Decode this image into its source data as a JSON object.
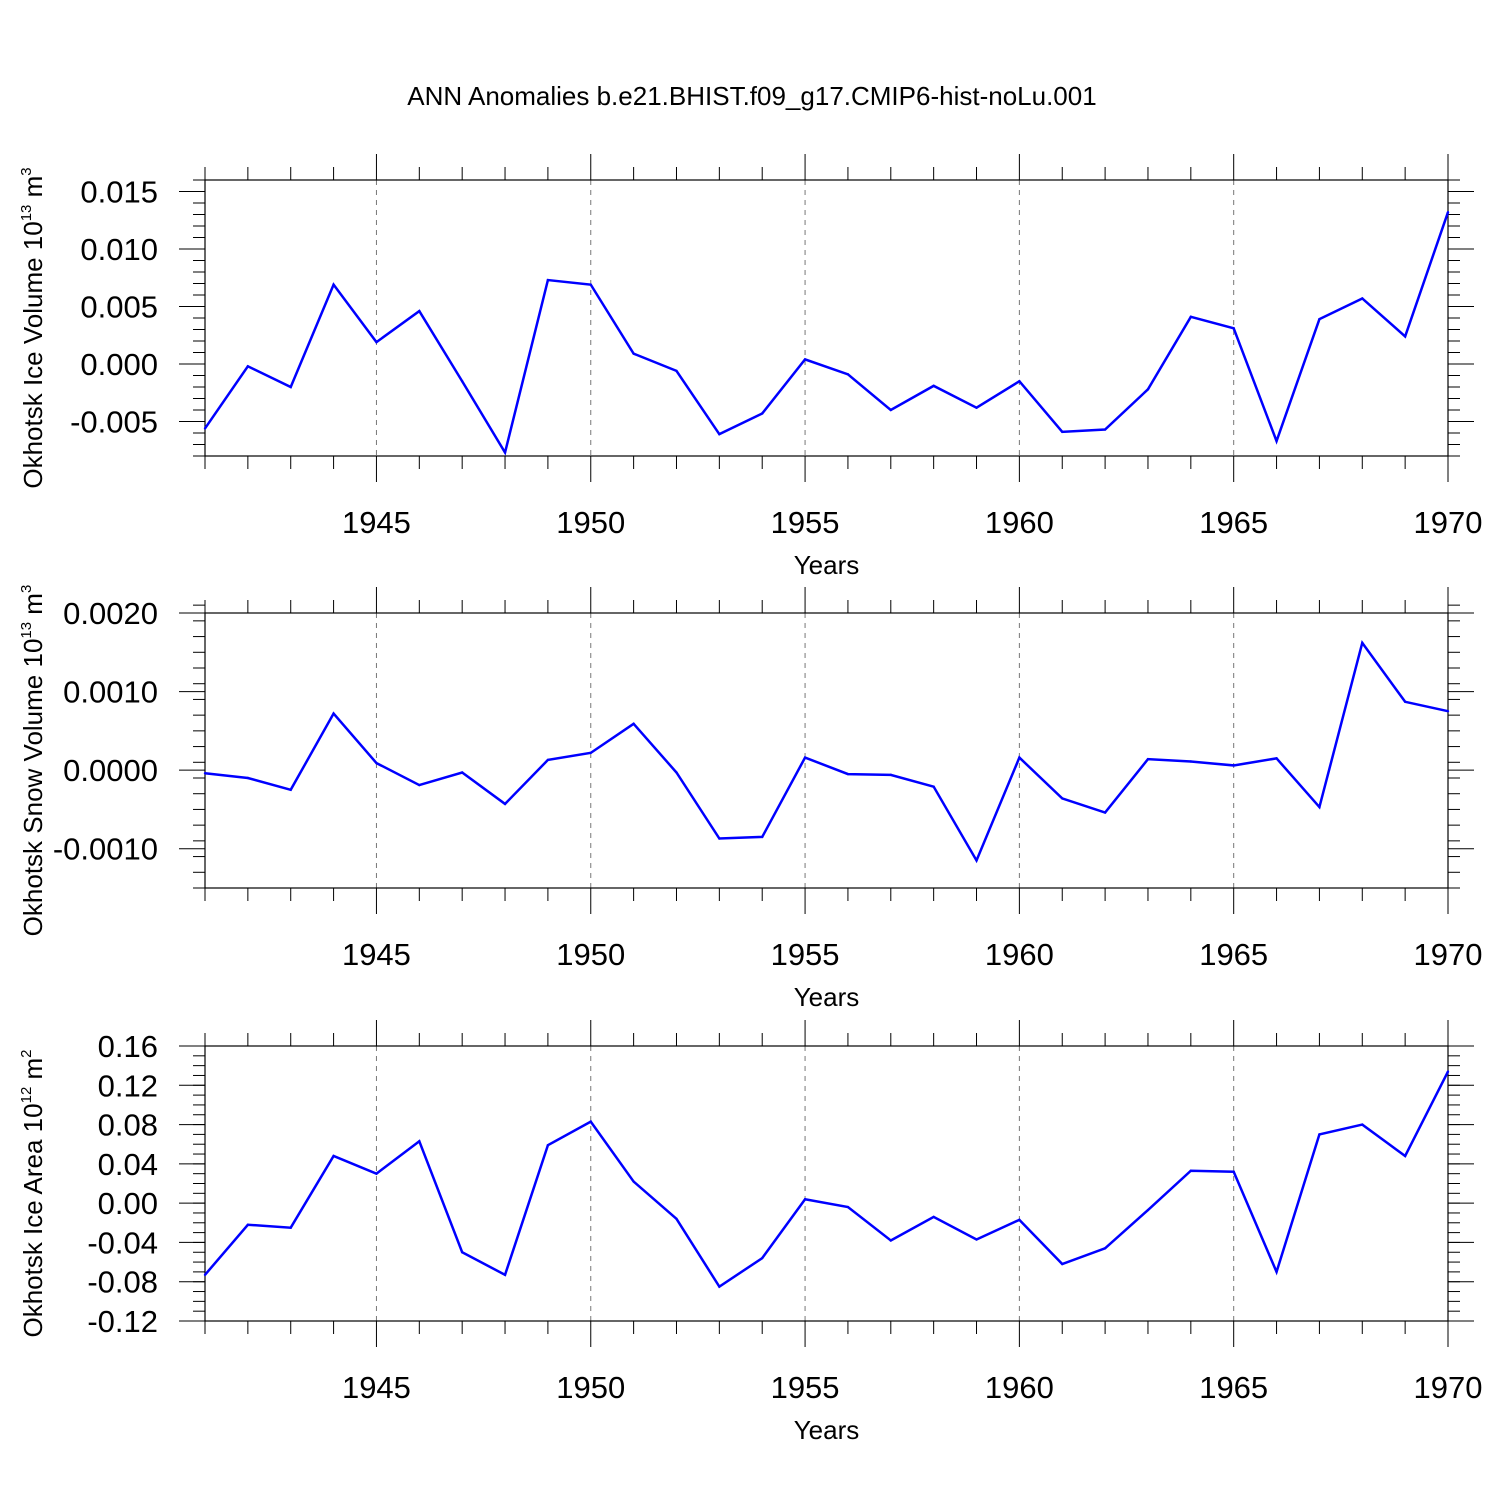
{
  "title": "ANN Anomalies b.e21.BHIST.f09_g17.CMIP6-hist-noLu.001",
  "line_color": "#0000ff",
  "chart_data": [
    {
      "type": "line",
      "ylabel": "Okhotsk Ice Volume 10",
      "ylabel_exp": "13",
      "ylabel_unit": " m",
      "ylabel_unit_exp": "3",
      "xlabel": "Years",
      "xlim": [
        1941,
        1970
      ],
      "ylim": [
        -0.008,
        0.016
      ],
      "yticks": [
        -0.005,
        0.0,
        0.005,
        0.01,
        0.015
      ],
      "ytick_labels": [
        "-0.005",
        "0.000",
        "0.005",
        "0.010",
        "0.015"
      ],
      "yminor": 0.001,
      "xticks": [
        1945,
        1950,
        1955,
        1960,
        1965,
        1970
      ],
      "xtick_labels": [
        "1945",
        "1950",
        "1955",
        "1960",
        "1965",
        "1970"
      ],
      "x": [
        1941,
        1942,
        1943,
        1944,
        1945,
        1946,
        1947,
        1948,
        1949,
        1950,
        1951,
        1952,
        1953,
        1954,
        1955,
        1956,
        1957,
        1958,
        1959,
        1960,
        1961,
        1962,
        1963,
        1964,
        1965,
        1966,
        1967,
        1968,
        1969,
        1970
      ],
      "values": [
        -0.0056,
        -0.0002,
        -0.002,
        0.0069,
        0.0019,
        0.0046,
        -0.0015,
        -0.0077,
        0.0073,
        0.0069,
        0.0009,
        -0.0006,
        -0.0061,
        -0.0043,
        0.0004,
        -0.0009,
        -0.004,
        -0.0019,
        -0.0038,
        -0.0015,
        -0.0059,
        -0.0057,
        -0.0022,
        0.0041,
        0.0031,
        -0.0067,
        0.0039,
        0.0057,
        0.0024,
        0.0132
      ]
    },
    {
      "type": "line",
      "ylabel": "Okhotsk Snow Volume 10",
      "ylabel_exp": "13",
      "ylabel_unit": " m",
      "ylabel_unit_exp": "3",
      "xlabel": "Years",
      "xlim": [
        1941,
        1970
      ],
      "ylim": [
        -0.0015,
        0.002
      ],
      "yticks": [
        -0.001,
        0.0,
        0.001,
        0.002
      ],
      "ytick_labels": [
        "-0.0010",
        "0.0000",
        "0.0010",
        "0.0020"
      ],
      "yminor": 0.0002,
      "xticks": [
        1945,
        1950,
        1955,
        1960,
        1965,
        1970
      ],
      "xtick_labels": [
        "1945",
        "1950",
        "1955",
        "1960",
        "1965",
        "1970"
      ],
      "x": [
        1941,
        1942,
        1943,
        1944,
        1945,
        1946,
        1947,
        1948,
        1949,
        1950,
        1951,
        1952,
        1953,
        1954,
        1955,
        1956,
        1957,
        1958,
        1959,
        1960,
        1961,
        1962,
        1963,
        1964,
        1965,
        1966,
        1967,
        1968,
        1969,
        1970
      ],
      "values": [
        -4e-05,
        -0.0001,
        -0.00025,
        0.00072,
        9e-05,
        -0.00019,
        -3e-05,
        -0.00043,
        0.00013,
        0.00022,
        0.00059,
        -3e-05,
        -0.00087,
        -0.00085,
        0.00016,
        -5e-05,
        -6e-05,
        -0.00021,
        -0.00115,
        0.00016,
        -0.00036,
        -0.00054,
        0.00014,
        0.00011,
        6e-05,
        0.00015,
        -0.00047,
        0.00162,
        0.00087,
        0.00075
      ]
    },
    {
      "type": "line",
      "ylabel": "Okhotsk Ice Area 10",
      "ylabel_exp": "12",
      "ylabel_unit": " m",
      "ylabel_unit_exp": "2",
      "xlabel": "Years",
      "xlim": [
        1941,
        1970
      ],
      "ylim": [
        -0.12,
        0.16
      ],
      "yticks": [
        -0.12,
        -0.08,
        -0.04,
        0.0,
        0.04,
        0.08,
        0.12,
        0.16
      ],
      "ytick_labels": [
        "-0.12",
        "-0.08",
        "-0.04",
        "0.00",
        "0.04",
        "0.08",
        "0.12",
        "0.16"
      ],
      "yminor": 0.01,
      "xticks": [
        1945,
        1950,
        1955,
        1960,
        1965,
        1970
      ],
      "xtick_labels": [
        "1945",
        "1950",
        "1955",
        "1960",
        "1965",
        "1970"
      ],
      "x": [
        1941,
        1942,
        1943,
        1944,
        1945,
        1946,
        1947,
        1948,
        1949,
        1950,
        1951,
        1952,
        1953,
        1954,
        1955,
        1956,
        1957,
        1958,
        1959,
        1960,
        1961,
        1962,
        1963,
        1964,
        1965,
        1966,
        1967,
        1968,
        1969,
        1970
      ],
      "values": [
        -0.073,
        -0.022,
        -0.025,
        0.048,
        0.03,
        0.063,
        -0.05,
        -0.073,
        0.059,
        0.083,
        0.022,
        -0.016,
        -0.085,
        -0.056,
        0.004,
        -0.004,
        -0.038,
        -0.014,
        -0.037,
        -0.017,
        -0.062,
        -0.046,
        -0.007,
        0.033,
        0.032,
        -0.07,
        0.07,
        0.08,
        0.048,
        0.134
      ]
    }
  ]
}
